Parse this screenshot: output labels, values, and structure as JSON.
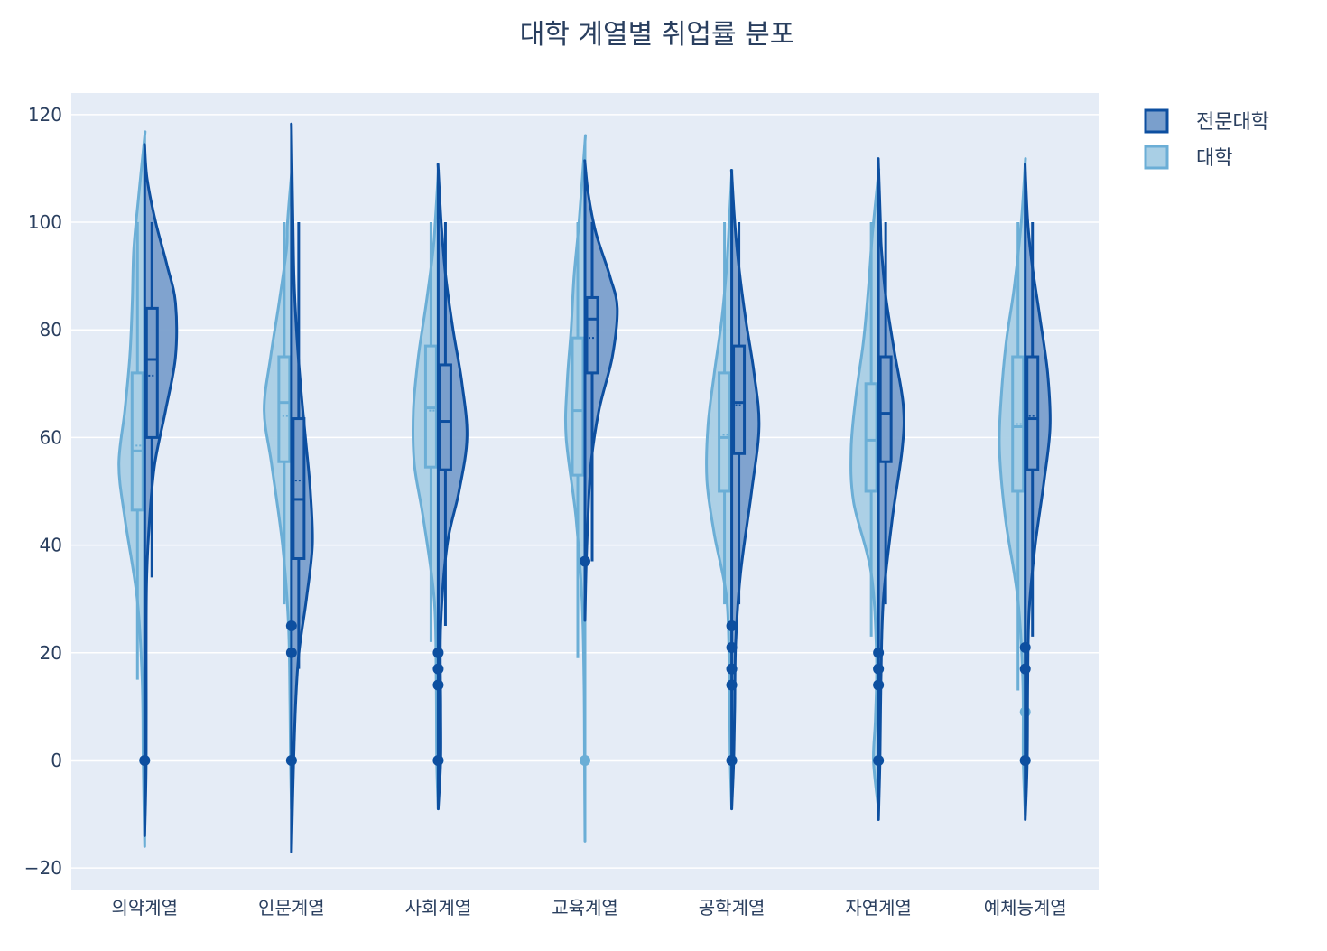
{
  "chart_data": {
    "type": "violin",
    "title": "대학 계열별 취업률 분포",
    "xlabel": "",
    "ylabel": "",
    "ylim": [
      -24,
      124
    ],
    "yticks": [
      -20,
      0,
      20,
      40,
      60,
      80,
      100,
      120
    ],
    "ytick_labels": [
      "−20",
      "0",
      "20",
      "40",
      "60",
      "80",
      "100",
      "120"
    ],
    "grid": true,
    "legend_position": "top-right",
    "categories": [
      "의약계열",
      "인문계열",
      "사회계열",
      "교육계열",
      "공학계열",
      "자연계열",
      "예체능계열"
    ],
    "series": [
      {
        "name": "전문대학",
        "side": "positive",
        "line_color": "#0d4fa0",
        "fill_color": "#7a9fcc",
        "groups": [
          {
            "category": "의약계열",
            "range": [
              -14,
              114
            ],
            "whisker": [
              34,
              100
            ],
            "q1": 60,
            "median": 74.5,
            "q3": 84,
            "mean": 71.5,
            "density": [
              [
                -14,
                0
              ],
              [
                0,
                0.03
              ],
              [
                20,
                0.03
              ],
              [
                34,
                0.04
              ],
              [
                45,
                0.1
              ],
              [
                55,
                0.2
              ],
              [
                65,
                0.42
              ],
              [
                75,
                0.62
              ],
              [
                85,
                0.62
              ],
              [
                92,
                0.45
              ],
              [
                100,
                0.22
              ],
              [
                108,
                0.05
              ],
              [
                114,
                0
              ]
            ],
            "outliers": [
              0
            ]
          },
          {
            "category": "인문계열",
            "range": [
              -17,
              117
            ],
            "whisker": [
              17,
              100
            ],
            "q1": 37.5,
            "median": 48.5,
            "q3": 63.5,
            "mean": 52,
            "density": [
              [
                -17,
                0
              ],
              [
                -5,
                0.03
              ],
              [
                10,
                0.08
              ],
              [
                20,
                0.15
              ],
              [
                30,
                0.3
              ],
              [
                40,
                0.42
              ],
              [
                50,
                0.38
              ],
              [
                60,
                0.28
              ],
              [
                70,
                0.18
              ],
              [
                80,
                0.1
              ],
              [
                90,
                0.05
              ],
              [
                100,
                0.03
              ],
              [
                117,
                0
              ]
            ],
            "outliers": [
              0,
              20,
              25
            ]
          },
          {
            "category": "사회계열",
            "range": [
              -9,
              110
            ],
            "whisker": [
              25,
              100
            ],
            "q1": 54,
            "median": 63,
            "q3": 73.5,
            "mean": 63,
            "density": [
              [
                -9,
                0
              ],
              [
                0,
                0.05
              ],
              [
                10,
                0.05
              ],
              [
                25,
                0.05
              ],
              [
                40,
                0.18
              ],
              [
                50,
                0.42
              ],
              [
                60,
                0.58
              ],
              [
                70,
                0.48
              ],
              [
                80,
                0.3
              ],
              [
                90,
                0.15
              ],
              [
                100,
                0.06
              ],
              [
                110,
                0
              ]
            ],
            "outliers": [
              0,
              14,
              17,
              20
            ]
          },
          {
            "category": "교육계열",
            "range": [
              26,
              111
            ],
            "whisker": [
              37,
              100
            ],
            "q1": 72,
            "median": 82,
            "q3": 86,
            "mean": 78.5,
            "density": [
              [
                26,
                0
              ],
              [
                35,
                0.02
              ],
              [
                45,
                0.06
              ],
              [
                55,
                0.12
              ],
              [
                65,
                0.28
              ],
              [
                75,
                0.55
              ],
              [
                84,
                0.65
              ],
              [
                90,
                0.5
              ],
              [
                98,
                0.22
              ],
              [
                105,
                0.07
              ],
              [
                111,
                0
              ]
            ],
            "outliers": [
              37
            ]
          },
          {
            "category": "공학계열",
            "range": [
              -9,
              109
            ],
            "whisker": [
              29,
              100
            ],
            "q1": 57,
            "median": 66.5,
            "q3": 77,
            "mean": 66,
            "density": [
              [
                -9,
                0
              ],
              [
                0,
                0.04
              ],
              [
                10,
                0.06
              ],
              [
                22,
                0.08
              ],
              [
                35,
                0.18
              ],
              [
                50,
                0.4
              ],
              [
                62,
                0.55
              ],
              [
                72,
                0.45
              ],
              [
                82,
                0.28
              ],
              [
                92,
                0.14
              ],
              [
                100,
                0.06
              ],
              [
                109,
                0
              ]
            ],
            "outliers": [
              0,
              14,
              17,
              21,
              25
            ]
          },
          {
            "category": "자연계열",
            "range": [
              -11,
              111
            ],
            "whisker": [
              29,
              100
            ],
            "q1": 55.5,
            "median": 64.5,
            "q3": 75,
            "mean": 64.5,
            "density": [
              [
                -11,
                0
              ],
              [
                0,
                0.03
              ],
              [
                15,
                0.05
              ],
              [
                30,
                0.1
              ],
              [
                45,
                0.28
              ],
              [
                58,
                0.48
              ],
              [
                66,
                0.5
              ],
              [
                76,
                0.32
              ],
              [
                86,
                0.15
              ],
              [
                95,
                0.06
              ],
              [
                100,
                0.04
              ],
              [
                111,
                0
              ]
            ],
            "outliers": [
              0,
              14,
              17,
              20
            ]
          },
          {
            "category": "예체능계열",
            "range": [
              -11,
              110
            ],
            "whisker": [
              23,
              100
            ],
            "q1": 54,
            "median": 63.5,
            "q3": 75,
            "mean": 64,
            "density": [
              [
                -11,
                0
              ],
              [
                0,
                0.04
              ],
              [
                15,
                0.05
              ],
              [
                28,
                0.08
              ],
              [
                40,
                0.2
              ],
              [
                52,
                0.38
              ],
              [
                62,
                0.5
              ],
              [
                72,
                0.45
              ],
              [
                82,
                0.3
              ],
              [
                92,
                0.14
              ],
              [
                100,
                0.05
              ],
              [
                110,
                0
              ]
            ],
            "outliers": [
              0,
              17,
              21
            ]
          }
        ]
      },
      {
        "name": "대학",
        "side": "negative",
        "line_color": "#6baed6",
        "fill_color": "#a9cfe5",
        "groups": [
          {
            "category": "의약계열",
            "range": [
              -16,
              116
            ],
            "whisker": [
              15,
              100
            ],
            "q1": 46.5,
            "median": 57.5,
            "q3": 72,
            "mean": 58.5,
            "density": [
              [
                -16,
                0
              ],
              [
                0,
                0.03
              ],
              [
                15,
                0.05
              ],
              [
                30,
                0.15
              ],
              [
                45,
                0.4
              ],
              [
                55,
                0.52
              ],
              [
                65,
                0.4
              ],
              [
                75,
                0.3
              ],
              [
                85,
                0.25
              ],
              [
                95,
                0.22
              ],
              [
                105,
                0.12
              ],
              [
                116,
                0
              ]
            ],
            "outliers": [
              0
            ]
          },
          {
            "category": "인문계열",
            "range": [
              -9,
              109
            ],
            "whisker": [
              29,
              100
            ],
            "q1": 55.5,
            "median": 66.5,
            "q3": 75,
            "mean": 64,
            "density": [
              [
                -9,
                0
              ],
              [
                0,
                0.02
              ],
              [
                10,
                0.03
              ],
              [
                25,
                0.06
              ],
              [
                40,
                0.18
              ],
              [
                55,
                0.4
              ],
              [
                65,
                0.55
              ],
              [
                75,
                0.42
              ],
              [
                85,
                0.25
              ],
              [
                95,
                0.1
              ],
              [
                100,
                0.08
              ],
              [
                109,
                0
              ]
            ],
            "outliers": [
              0
            ]
          },
          {
            "category": "사회계열",
            "range": [
              -9,
              109
            ],
            "whisker": [
              22,
              100
            ],
            "q1": 54.5,
            "median": 65.5,
            "q3": 77,
            "mean": 65,
            "density": [
              [
                -9,
                0
              ],
              [
                0,
                0.03
              ],
              [
                15,
                0.04
              ],
              [
                30,
                0.08
              ],
              [
                45,
                0.3
              ],
              [
                55,
                0.48
              ],
              [
                65,
                0.5
              ],
              [
                75,
                0.4
              ],
              [
                85,
                0.24
              ],
              [
                95,
                0.1
              ],
              [
                100,
                0.06
              ],
              [
                109,
                0
              ]
            ],
            "outliers": [
              0
            ]
          },
          {
            "category": "교육계열",
            "range": [
              -15,
              115
            ],
            "whisker": [
              19,
              100
            ],
            "q1": 53,
            "median": 65,
            "q3": 78.5,
            "mean": 65,
            "density": [
              [
                -15,
                0
              ],
              [
                0,
                0.01
              ],
              [
                15,
                0.02
              ],
              [
                30,
                0.06
              ],
              [
                45,
                0.18
              ],
              [
                60,
                0.38
              ],
              [
                70,
                0.36
              ],
              [
                80,
                0.28
              ],
              [
                90,
                0.22
              ],
              [
                100,
                0.12
              ],
              [
                115,
                0
              ]
            ],
            "outliers": [
              0
            ]
          },
          {
            "category": "공학계열",
            "range": [
              -9,
              109
            ],
            "whisker": [
              29,
              100
            ],
            "q1": 50,
            "median": 60,
            "q3": 72,
            "mean": 60.5,
            "density": [
              [
                -9,
                0
              ],
              [
                0,
                0.03
              ],
              [
                15,
                0.05
              ],
              [
                30,
                0.1
              ],
              [
                42,
                0.35
              ],
              [
                52,
                0.5
              ],
              [
                62,
                0.48
              ],
              [
                72,
                0.35
              ],
              [
                82,
                0.2
              ],
              [
                92,
                0.1
              ],
              [
                100,
                0.05
              ],
              [
                109,
                0
              ]
            ],
            "outliers": [
              0,
              14,
              17
            ]
          },
          {
            "category": "자연계열",
            "range": [
              -9,
              109
            ],
            "whisker": [
              23,
              100
            ],
            "q1": 50,
            "median": 59.5,
            "q3": 70,
            "mean": 59.5,
            "density": [
              [
                -9,
                0
              ],
              [
                0,
                0.1
              ],
              [
                8,
                0.06
              ],
              [
                20,
                0.04
              ],
              [
                35,
                0.15
              ],
              [
                48,
                0.5
              ],
              [
                58,
                0.55
              ],
              [
                68,
                0.45
              ],
              [
                78,
                0.3
              ],
              [
                88,
                0.2
              ],
              [
                98,
                0.12
              ],
              [
                109,
                0
              ]
            ],
            "outliers": [
              0,
              14,
              17
            ]
          },
          {
            "category": "예체능계열",
            "range": [
              -10,
              111
            ],
            "whisker": [
              13,
              100
            ],
            "q1": 50,
            "median": 62,
            "q3": 75,
            "mean": 62.5,
            "density": [
              [
                -10,
                0
              ],
              [
                0,
                0.04
              ],
              [
                15,
                0.05
              ],
              [
                30,
                0.15
              ],
              [
                45,
                0.4
              ],
              [
                58,
                0.52
              ],
              [
                68,
                0.48
              ],
              [
                78,
                0.38
              ],
              [
                88,
                0.22
              ],
              [
                100,
                0.08
              ],
              [
                111,
                0
              ]
            ],
            "outliers": [
              0,
              9
            ]
          }
        ]
      }
    ]
  }
}
